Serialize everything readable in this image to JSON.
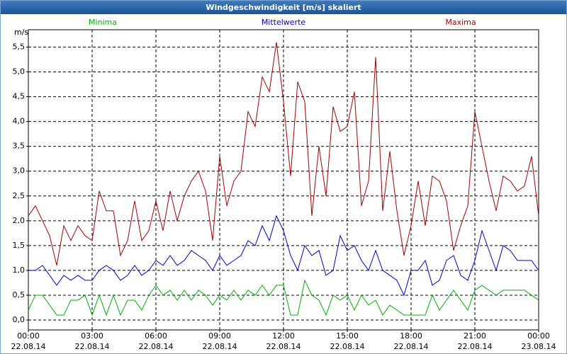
{
  "chart_data": {
    "type": "line",
    "title": "Windgeschwindigkeit [m/s] skaliert",
    "y_label": "m/s",
    "x": [
      0,
      20,
      40,
      60,
      80,
      100,
      120,
      140,
      160,
      180,
      200,
      220,
      240,
      260,
      280,
      300,
      320,
      340,
      360,
      380,
      400,
      420,
      440,
      460,
      480,
      500,
      520,
      540,
      560,
      580,
      600,
      620,
      640,
      660,
      680,
      700,
      720,
      740,
      760,
      780,
      800,
      820,
      840,
      860,
      880,
      900,
      920,
      940,
      960,
      980,
      1000,
      1020,
      1040,
      1060,
      1080,
      1100,
      1120,
      1140,
      1160,
      1180,
      1200,
      1220,
      1240,
      1260,
      1280,
      1300,
      1320,
      1340,
      1360,
      1380,
      1400,
      1420,
      1440
    ],
    "series": [
      {
        "name": "Minima",
        "color": "#00b000",
        "values": [
          0.2,
          0.5,
          0.5,
          0.3,
          0.1,
          0.1,
          0.4,
          0.4,
          0.5,
          0.1,
          0.5,
          0.1,
          0.5,
          0.1,
          0.4,
          0.4,
          0.2,
          0.5,
          0.7,
          0.5,
          0.6,
          0.4,
          0.6,
          0.4,
          0.6,
          0.5,
          0.3,
          0.5,
          0.4,
          0.6,
          0.4,
          0.6,
          0.5,
          0.7,
          0.5,
          0.7,
          0.7,
          0.1,
          0.1,
          0.8,
          0.5,
          0.4,
          0.1,
          0.5,
          0.4,
          0.5,
          0.2,
          0.5,
          0.3,
          0.4,
          0.1,
          0.3,
          0.2,
          0.1,
          0.1,
          0.1,
          0.1,
          0.5,
          0.2,
          0.4,
          0.6,
          0.4,
          0.2,
          0.6,
          0.7,
          0.6,
          0.5,
          0.6,
          0.6,
          0.6,
          0.6,
          0.5,
          0.4
        ]
      },
      {
        "name": "Mittelwerte",
        "color": "#0000c0",
        "values": [
          1.0,
          1.0,
          1.1,
          0.9,
          0.7,
          0.9,
          0.8,
          0.9,
          0.8,
          0.8,
          1.0,
          1.1,
          1.0,
          0.8,
          0.9,
          1.1,
          0.9,
          1.0,
          1.2,
          1.1,
          1.3,
          1.1,
          1.2,
          1.4,
          1.3,
          1.2,
          1.0,
          1.3,
          1.1,
          1.2,
          1.3,
          1.6,
          1.5,
          1.9,
          1.6,
          2.1,
          1.8,
          1.3,
          1.0,
          1.5,
          1.3,
          1.4,
          0.9,
          1.0,
          1.7,
          1.4,
          1.5,
          1.2,
          1.0,
          1.4,
          1.0,
          0.9,
          0.8,
          0.5,
          1.0,
          1.0,
          1.2,
          0.7,
          0.8,
          1.2,
          1.3,
          0.9,
          0.8,
          1.2,
          1.8,
          1.4,
          1.0,
          1.5,
          1.4,
          1.2,
          1.2,
          1.2,
          1.0
        ]
      },
      {
        "name": "Maxima",
        "color": "#a00000",
        "values": [
          2.1,
          2.3,
          2.0,
          1.7,
          1.1,
          1.9,
          1.6,
          1.9,
          1.7,
          1.6,
          2.6,
          2.2,
          2.2,
          1.3,
          1.6,
          2.4,
          1.6,
          1.8,
          2.4,
          1.8,
          2.6,
          2.0,
          2.5,
          2.8,
          3.0,
          2.6,
          1.6,
          3.3,
          2.3,
          2.8,
          3.0,
          4.2,
          3.9,
          4.9,
          4.6,
          5.6,
          4.4,
          2.9,
          4.8,
          4.4,
          2.1,
          3.5,
          2.5,
          4.3,
          3.8,
          3.9,
          4.6,
          2.3,
          2.8,
          5.3,
          2.2,
          3.4,
          2.2,
          1.3,
          1.9,
          2.8,
          1.9,
          2.9,
          2.8,
          2.4,
          1.4,
          1.9,
          2.3,
          4.2,
          3.5,
          2.8,
          2.2,
          2.9,
          2.8,
          2.6,
          2.7,
          3.3,
          2.1
        ]
      }
    ],
    "xlim": [
      0,
      1440
    ],
    "xticks": [
      {
        "value": 0,
        "label": "00:00",
        "sublabel": "22.08.14"
      },
      {
        "value": 180,
        "label": "03:00",
        "sublabel": "22.08.14"
      },
      {
        "value": 360,
        "label": "06:00",
        "sublabel": "22.08.14"
      },
      {
        "value": 540,
        "label": "09:00",
        "sublabel": "22.08.14"
      },
      {
        "value": 720,
        "label": "12:00",
        "sublabel": "22.08.14"
      },
      {
        "value": 900,
        "label": "15:00",
        "sublabel": "22.08.14"
      },
      {
        "value": 1080,
        "label": "18:00",
        "sublabel": "22.08.14"
      },
      {
        "value": 1260,
        "label": "21:00",
        "sublabel": "22.08.14"
      },
      {
        "value": 1440,
        "label": "00:00",
        "sublabel": "23.08.14"
      }
    ],
    "ylim": [
      -0.2,
      5.85
    ],
    "yticks": [
      {
        "value": 0,
        "label": "0,0"
      },
      {
        "value": 0.5,
        "label": "0,5"
      },
      {
        "value": 1,
        "label": "1,0"
      },
      {
        "value": 1.5,
        "label": "1,5"
      },
      {
        "value": 2,
        "label": "2,0"
      },
      {
        "value": 2.5,
        "label": "2,5"
      },
      {
        "value": 3,
        "label": "3,0"
      },
      {
        "value": 3.5,
        "label": "3,5"
      },
      {
        "value": 4,
        "label": "4,0"
      },
      {
        "value": 4.5,
        "label": "4,5"
      },
      {
        "value": 5,
        "label": "5,0"
      },
      {
        "value": 5.5,
        "label": "5,5"
      }
    ],
    "grid": true
  }
}
